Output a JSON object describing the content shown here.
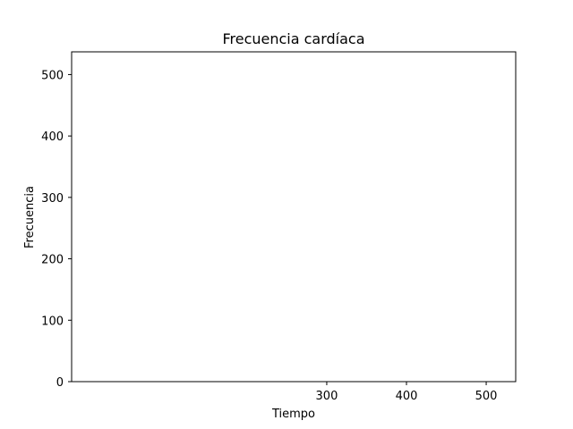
{
  "chart_data": {
    "type": "line",
    "title": "Frecuencia cardíaca",
    "xlabel": "Tiempo",
    "ylabel": "Frecuencia",
    "xlim": [
      -20,
      537
    ],
    "ylim": [
      0,
      537
    ],
    "xticks": [
      300,
      400,
      500
    ],
    "yticks": [
      0,
      100,
      200,
      300,
      400,
      500
    ],
    "series": [],
    "grid": false,
    "legend": "none",
    "colors": {
      "background": "#ffffff",
      "axes": "#000000",
      "text": "#000000"
    }
  }
}
